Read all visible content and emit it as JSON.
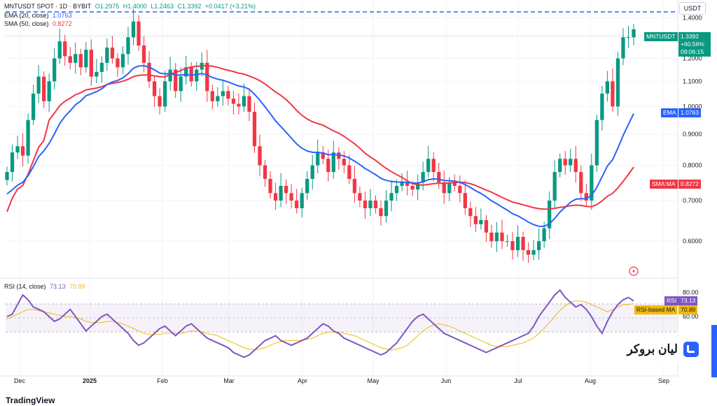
{
  "header": {
    "symbol": "MNTUSDT SPOT · 1D · BYBIT",
    "open": "O1.2975",
    "high": "H1.4000",
    "low": "L1.2463",
    "close": "C1.3392",
    "change": "+0.0417 (+3.21%)",
    "ema_label": "EMA (20, close)",
    "ema_value": "1.0763",
    "sma_label": "SMA (50, close)",
    "sma_value": "0.8272",
    "rsi_label": "RSI (14, close)",
    "rsi_value": "73.13",
    "rsi_ma_value": "70.89"
  },
  "currency_button": "USDT",
  "price_tag": {
    "symbol": "MNTUSDT",
    "price": "1.3392",
    "change": "+60.56%",
    "countdown": "09:06:15"
  },
  "ema_tag": {
    "name": "EMA",
    "value": "1.0763"
  },
  "sma_tag": {
    "name": "SMA:MA",
    "value": "0.8272"
  },
  "rsi_tag": {
    "name": "RSI",
    "value": "73.13"
  },
  "rsi_ma_tag": {
    "name": "RSI-based MA",
    "value": "70.89"
  },
  "watermark": "لیان بروکر",
  "branding": "TradingView",
  "colors": {
    "up": "#089981",
    "down": "#f23645",
    "ema": "#2962ff",
    "sma": "#f23645",
    "rsi": "#7e57c2",
    "rsi_ma": "#f0b90b",
    "dashed_line": "#2962ff"
  },
  "chart_data": [
    {
      "type": "candlestick",
      "title": "MNTUSDT SPOT · 1D · BYBIT",
      "x": [
        "Dec",
        "2025",
        "Feb",
        "Mar",
        "Apr",
        "May",
        "Jun",
        "Jul",
        "Aug",
        "Sep"
      ],
      "y_ticks": [
        "1.4000",
        "1.3000",
        "1.2000",
        "1.1000",
        "1.0000",
        "0.9000",
        "0.8000",
        "0.7000",
        "0.6000"
      ],
      "ylim": [
        0.53,
        1.42
      ],
      "scale": "log",
      "dashed_resistance": 1.42,
      "closes": [
        0.78,
        0.84,
        0.86,
        0.83,
        0.95,
        1.05,
        1.12,
        1.02,
        1.1,
        1.2,
        1.28,
        1.21,
        1.18,
        1.22,
        1.16,
        1.24,
        1.12,
        1.14,
        1.18,
        1.25,
        1.2,
        1.16,
        1.22,
        1.3,
        1.38,
        1.26,
        1.18,
        1.1,
        1.04,
        1.0,
        1.1,
        1.15,
        1.06,
        1.12,
        1.16,
        1.1,
        1.15,
        1.18,
        1.06,
        1.02,
        1.04,
        1.06,
        1.03,
        1.01,
        1.0,
        1.04,
        0.98,
        0.86,
        0.8,
        0.76,
        0.72,
        0.7,
        0.74,
        0.72,
        0.7,
        0.68,
        0.72,
        0.76,
        0.8,
        0.84,
        0.82,
        0.78,
        0.84,
        0.82,
        0.8,
        0.76,
        0.72,
        0.7,
        0.68,
        0.7,
        0.68,
        0.66,
        0.7,
        0.72,
        0.74,
        0.75,
        0.74,
        0.73,
        0.75,
        0.78,
        0.82,
        0.78,
        0.75,
        0.72,
        0.75,
        0.74,
        0.72,
        0.68,
        0.66,
        0.64,
        0.65,
        0.62,
        0.6,
        0.62,
        0.6,
        0.6,
        0.58,
        0.61,
        0.58,
        0.57,
        0.58,
        0.6,
        0.63,
        0.7,
        0.78,
        0.82,
        0.8,
        0.82,
        0.78,
        0.72,
        0.7,
        0.8,
        0.95,
        1.05,
        1.1,
        1.0,
        1.2,
        1.3,
        1.3,
        1.34
      ],
      "series": [
        {
          "name": "EMA (20, close)",
          "last": 1.0763
        },
        {
          "name": "SMA (50, close)",
          "last": 0.8272
        }
      ]
    },
    {
      "type": "line",
      "title": "RSI (14, close)",
      "y_ticks": [
        "80.00",
        "60.00"
      ],
      "ylim": [
        18,
        88
      ],
      "rsi": [
        60,
        62,
        70,
        78,
        74,
        68,
        66,
        64,
        60,
        56,
        58,
        62,
        66,
        60,
        54,
        48,
        52,
        56,
        60,
        62,
        58,
        54,
        50,
        46,
        40,
        36,
        38,
        42,
        46,
        50,
        52,
        48,
        44,
        48,
        52,
        54,
        50,
        46,
        42,
        40,
        38,
        36,
        34,
        30,
        28,
        26,
        28,
        32,
        36,
        40,
        42,
        44,
        40,
        38,
        36,
        38,
        40,
        42,
        46,
        50,
        54,
        52,
        48,
        46,
        42,
        40,
        38,
        36,
        34,
        32,
        30,
        28,
        30,
        34,
        38,
        44,
        50,
        56,
        60,
        62,
        58,
        54,
        50,
        46,
        44,
        42,
        40,
        38,
        36,
        34,
        32,
        30,
        32,
        34,
        36,
        38,
        40,
        42,
        44,
        46,
        52,
        60,
        66,
        72,
        78,
        82,
        76,
        72,
        68,
        70,
        66,
        60,
        52,
        46,
        56,
        64,
        70,
        74,
        76,
        73
      ],
      "rsi_ma": [
        58,
        60,
        62,
        64,
        66,
        66,
        65,
        64,
        63,
        62,
        61,
        60,
        60,
        59,
        58,
        56,
        55,
        55,
        55,
        56,
        56,
        55,
        54,
        52,
        50,
        48,
        46,
        45,
        45,
        45,
        46,
        46,
        46,
        46,
        47,
        48,
        48,
        47,
        46,
        45,
        44,
        42,
        40,
        38,
        36,
        34,
        33,
        32,
        33,
        34,
        36,
        38,
        39,
        40,
        40,
        40,
        40,
        41,
        42,
        44,
        46,
        47,
        47,
        47,
        46,
        45,
        44,
        42,
        40,
        38,
        36,
        34,
        33,
        32,
        33,
        34,
        36,
        40,
        44,
        48,
        51,
        53,
        54,
        53,
        52,
        50,
        48,
        46,
        44,
        42,
        40,
        38,
        36,
        35,
        35,
        35,
        36,
        37,
        38,
        40,
        42,
        46,
        50,
        55,
        60,
        65,
        69,
        72,
        73,
        73,
        72,
        70,
        68,
        66,
        64,
        66,
        68,
        70,
        70,
        70.89
      ]
    }
  ]
}
